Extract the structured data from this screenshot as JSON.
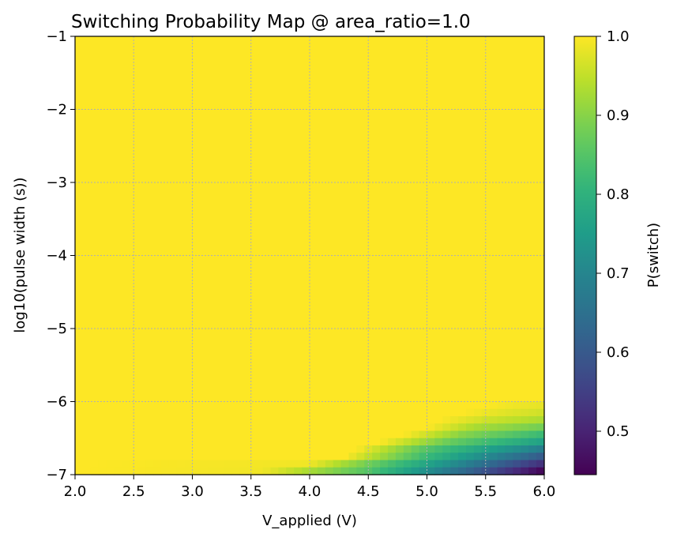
{
  "chart_data": {
    "type": "heatmap",
    "title": "Switching Probability Map @ area_ratio=1.0",
    "xlabel": "V_applied (V)",
    "ylabel": "log10(pulse width (s))",
    "xlim": [
      2.0,
      6.0
    ],
    "ylim": [
      -7,
      -1
    ],
    "x_ticks": [
      2.0,
      2.5,
      3.0,
      3.5,
      4.0,
      4.5,
      5.0,
      5.5,
      6.0
    ],
    "x_tick_labels": [
      "2.0",
      "2.5",
      "3.0",
      "3.5",
      "4.0",
      "4.5",
      "5.0",
      "5.5",
      "6.0"
    ],
    "y_ticks": [
      -1,
      -2,
      -3,
      -4,
      -5,
      -6,
      -7
    ],
    "y_tick_labels": [
      "−1",
      "−2",
      "−3",
      "−4",
      "−5",
      "−6",
      "−7"
    ],
    "grid": true,
    "grid_style": "dotted",
    "colormap": "viridis",
    "colorbar": {
      "label": "P(switch)",
      "range": [
        0.445,
        1.0
      ],
      "ticks": [
        1.0,
        0.9,
        0.8,
        0.7,
        0.6,
        0.5
      ],
      "tick_labels": [
        "1.0",
        "0.9",
        "0.8",
        "0.7",
        "0.6",
        "0.5"
      ]
    },
    "grid_resolution": {
      "x_bins": 60,
      "y_bins": 60
    },
    "background_value": 1.0,
    "transition_rows": [
      {
        "log10_pw": -6.05,
        "x": [
          2.0,
          5.5,
          5.7,
          6.0
        ],
        "p": [
          1.0,
          1.0,
          0.99,
          0.98
        ]
      },
      {
        "log10_pw": -6.15,
        "x": [
          2.0,
          5.3,
          5.6,
          6.0
        ],
        "p": [
          1.0,
          1.0,
          0.98,
          0.96
        ]
      },
      {
        "log10_pw": -6.25,
        "x": [
          2.0,
          5.1,
          5.5,
          6.0
        ],
        "p": [
          1.0,
          1.0,
          0.96,
          0.93
        ]
      },
      {
        "log10_pw": -6.35,
        "x": [
          2.0,
          5.0,
          5.4,
          6.0
        ],
        "p": [
          1.0,
          1.0,
          0.93,
          0.88
        ]
      },
      {
        "log10_pw": -6.45,
        "x": [
          2.0,
          4.8,
          5.3,
          6.0
        ],
        "p": [
          1.0,
          1.0,
          0.9,
          0.82
        ]
      },
      {
        "log10_pw": -6.55,
        "x": [
          2.0,
          4.6,
          5.2,
          6.0
        ],
        "p": [
          1.0,
          1.0,
          0.87,
          0.76
        ]
      },
      {
        "log10_pw": -6.65,
        "x": [
          2.0,
          4.4,
          5.0,
          6.0
        ],
        "p": [
          1.0,
          1.0,
          0.85,
          0.68
        ]
      },
      {
        "log10_pw": -6.75,
        "x": [
          2.0,
          4.3,
          5.0,
          6.0
        ],
        "p": [
          1.0,
          1.0,
          0.82,
          0.6
        ]
      },
      {
        "log10_pw": -6.85,
        "x": [
          2.0,
          4.0,
          5.0,
          6.0
        ],
        "p": [
          1.0,
          0.99,
          0.77,
          0.52
        ]
      },
      {
        "log10_pw": -6.95,
        "x": [
          2.0,
          3.6,
          4.5,
          5.0,
          6.0
        ],
        "p": [
          1.0,
          0.99,
          0.85,
          0.72,
          0.45
        ]
      }
    ]
  }
}
